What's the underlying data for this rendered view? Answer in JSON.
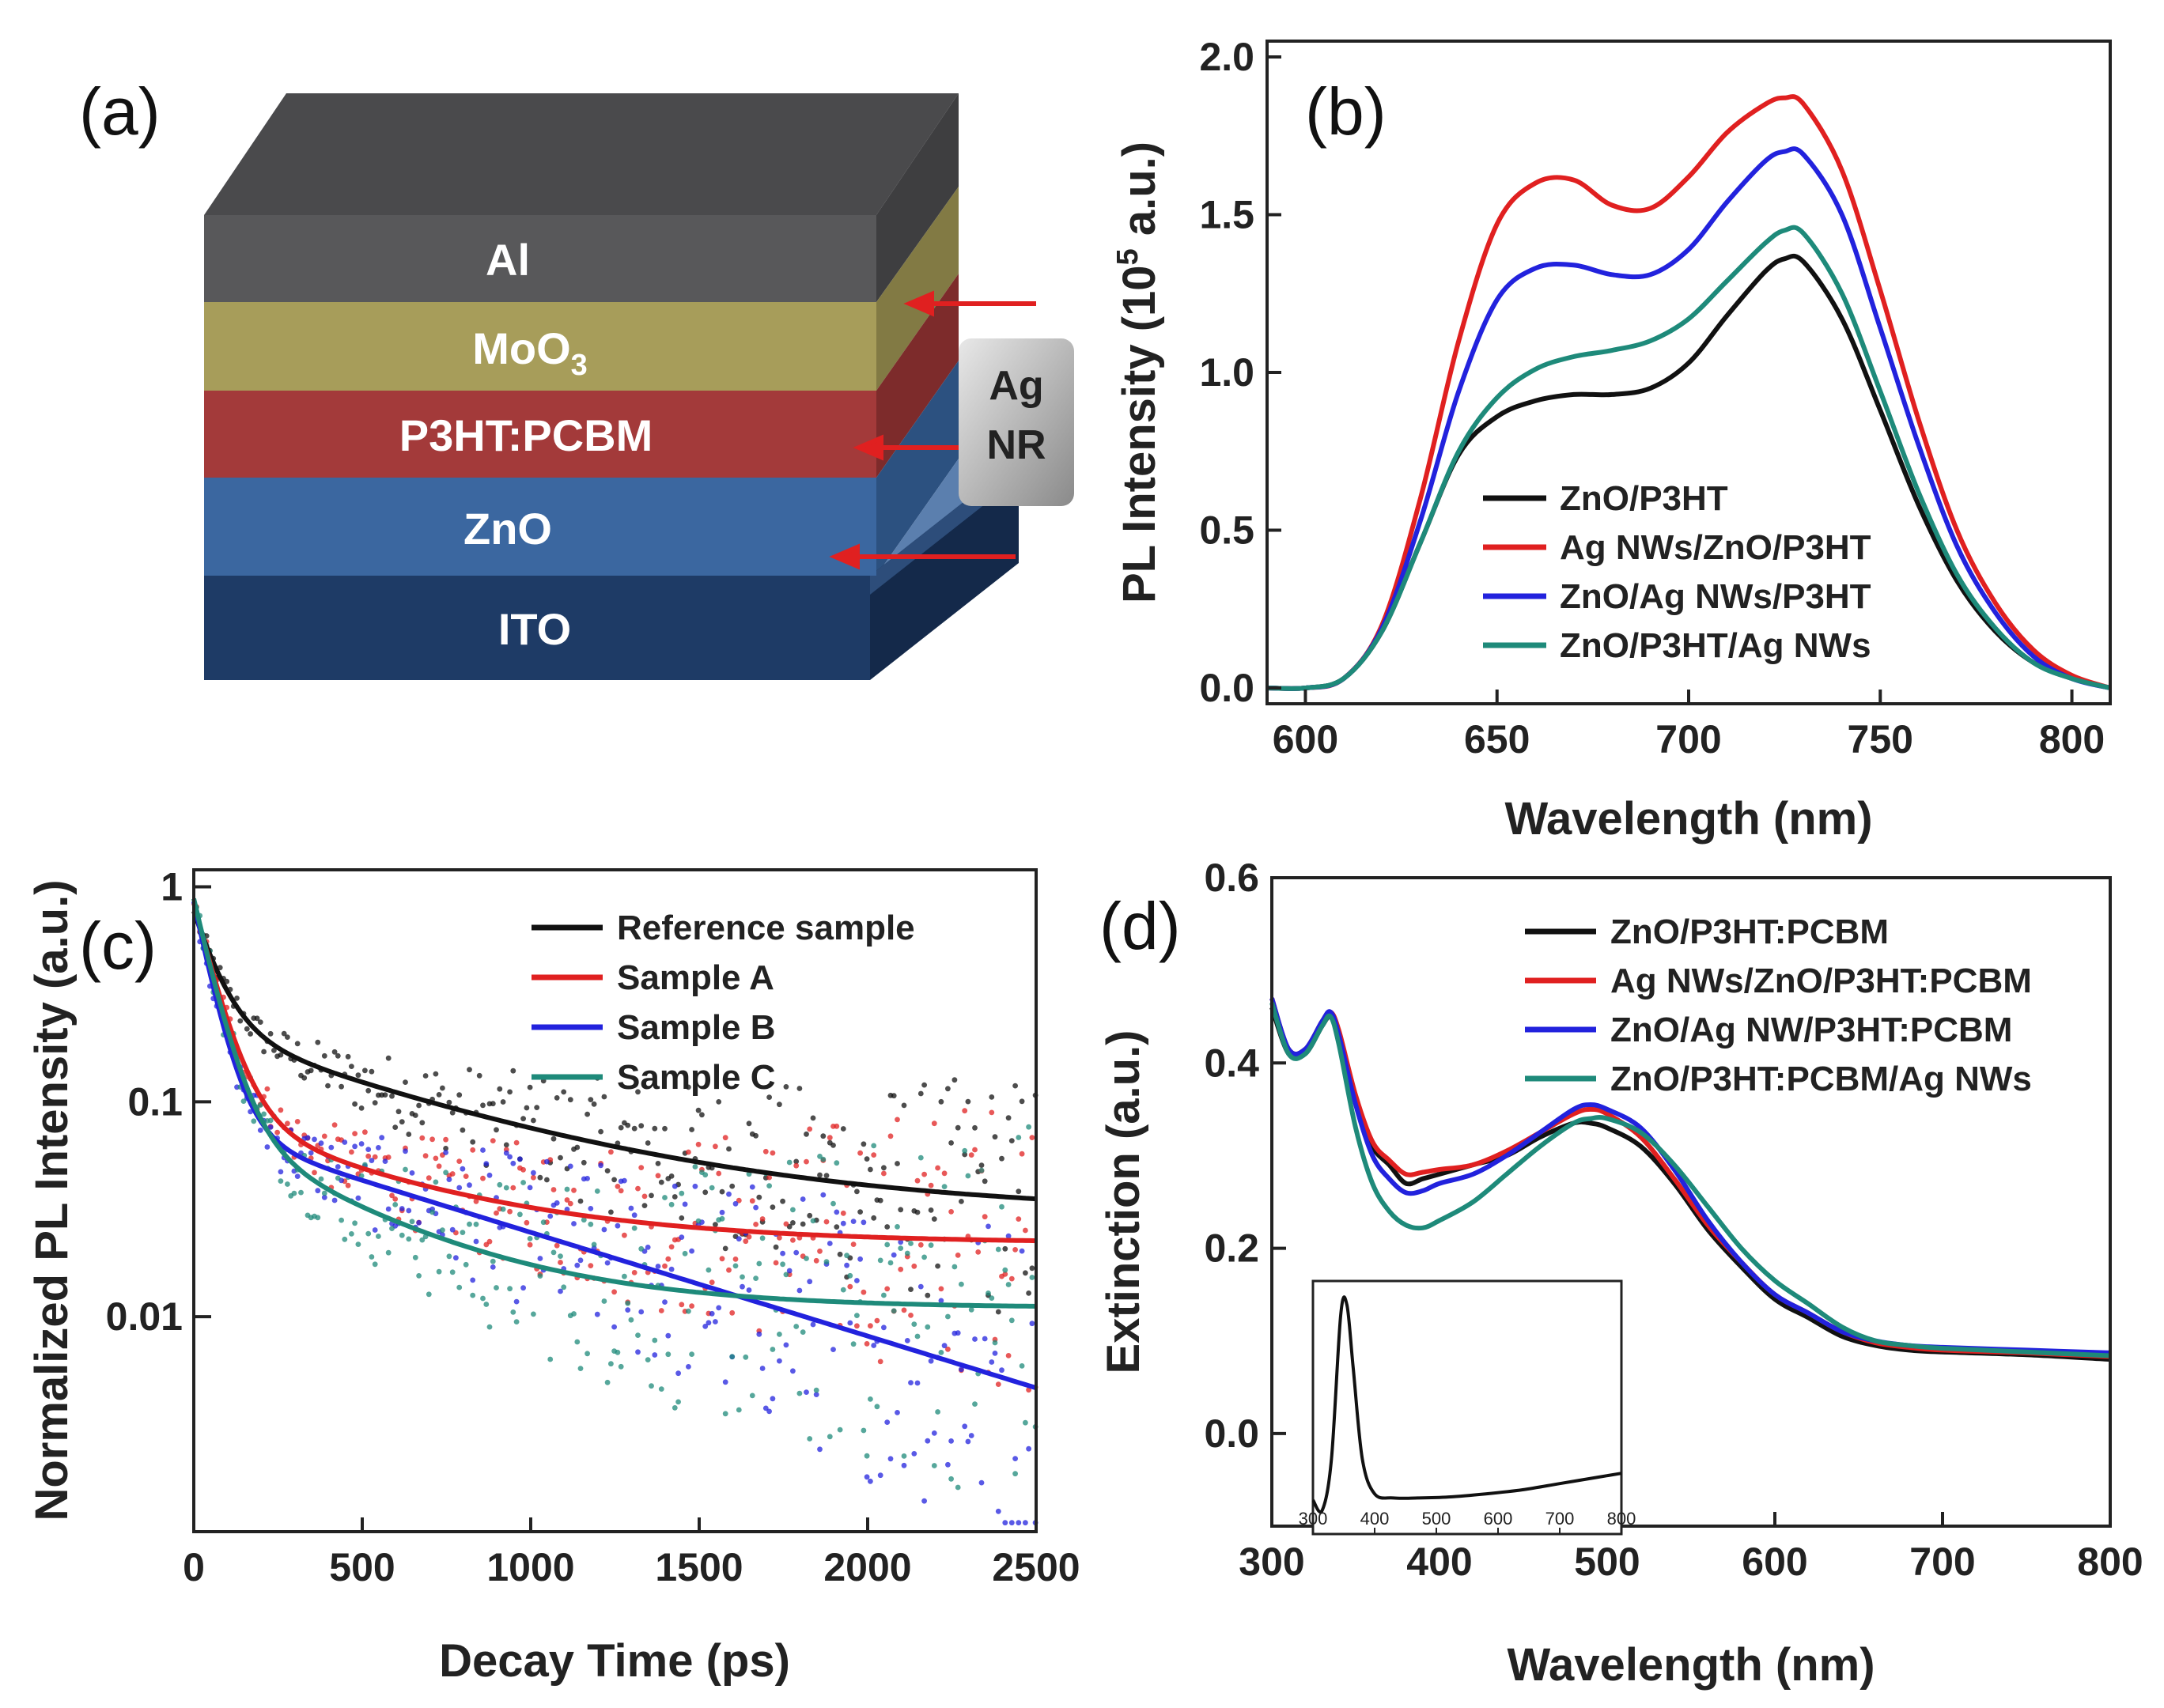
{
  "figure": {
    "panels": [
      "(a)",
      "(b)",
      "(c)",
      "(d)"
    ]
  },
  "chart_data": [
    {
      "id": "a",
      "type": "diagram",
      "title": "",
      "layers": [
        {
          "label": "Al",
          "color": "#58585a"
        },
        {
          "label": "MoO",
          "sub": "3",
          "color": "#a79d5a"
        },
        {
          "label": "P3HT:PCBM",
          "color": "#a33a3a"
        },
        {
          "label": "ZnO",
          "color": "#3b67a0"
        },
        {
          "label": "ITO",
          "color": "#1e3b66"
        }
      ],
      "annotation": {
        "line1": "Ag",
        "line2": "NR"
      },
      "arrow_color": "#e02020"
    },
    {
      "id": "b",
      "type": "line",
      "title": "",
      "xlabel": "Wavelength (nm)",
      "ylabel_prefix": "PL Intensity (10",
      "ylabel_sup": "5",
      "ylabel_suffix": " a.u.)",
      "xlim": [
        590,
        810
      ],
      "ylim": [
        -0.05,
        2.05
      ],
      "xticks": [
        600,
        650,
        700,
        750,
        800
      ],
      "yticks": [
        0.0,
        0.5,
        1.0,
        1.5,
        2.0
      ],
      "x": [
        590,
        600,
        610,
        620,
        630,
        640,
        650,
        660,
        670,
        680,
        690,
        700,
        710,
        720,
        725,
        730,
        740,
        750,
        760,
        770,
        780,
        790,
        800,
        810
      ],
      "series": [
        {
          "name": "ZnO/P3HT",
          "color": "#111111",
          "values": [
            0.0,
            0.0,
            0.03,
            0.18,
            0.46,
            0.74,
            0.86,
            0.91,
            0.93,
            0.93,
            0.95,
            1.03,
            1.18,
            1.32,
            1.36,
            1.35,
            1.17,
            0.88,
            0.58,
            0.34,
            0.18,
            0.08,
            0.03,
            0.0
          ]
        },
        {
          "name": "Ag NWs/ZnO/P3HT",
          "color": "#e02020",
          "values": [
            0.0,
            0.0,
            0.03,
            0.2,
            0.6,
            1.1,
            1.47,
            1.6,
            1.61,
            1.53,
            1.52,
            1.62,
            1.76,
            1.85,
            1.87,
            1.85,
            1.64,
            1.26,
            0.85,
            0.5,
            0.27,
            0.12,
            0.04,
            0.0
          ]
        },
        {
          "name": "ZnO/Ag NWs/P3HT",
          "color": "#2222dd",
          "values": [
            0.0,
            0.0,
            0.03,
            0.19,
            0.53,
            0.94,
            1.23,
            1.33,
            1.34,
            1.31,
            1.31,
            1.39,
            1.54,
            1.67,
            1.7,
            1.69,
            1.5,
            1.14,
            0.77,
            0.45,
            0.24,
            0.1,
            0.03,
            0.0
          ]
        },
        {
          "name": "ZnO/P3HT/Ag NWs",
          "color": "#1e8a7a",
          "values": [
            0.0,
            0.0,
            0.03,
            0.18,
            0.46,
            0.75,
            0.92,
            1.01,
            1.05,
            1.07,
            1.1,
            1.17,
            1.29,
            1.41,
            1.45,
            1.44,
            1.25,
            0.94,
            0.62,
            0.36,
            0.19,
            0.08,
            0.03,
            0.0
          ]
        }
      ]
    },
    {
      "id": "c",
      "type": "scatter",
      "title": "",
      "xlabel": "Decay Time (ps)",
      "ylabel": "Normalized PL Intensity (a.u.)",
      "yscale": "log",
      "xlim": [
        0,
        2500
      ],
      "ylim": [
        0.001,
        1.2
      ],
      "xticks": [
        0,
        500,
        1000,
        1500,
        2000,
        2500
      ],
      "yticks": [
        1,
        0.1,
        0.01
      ],
      "ytick_labels": [
        "1",
        "0.1",
        "0.01"
      ],
      "series": [
        {
          "name": "Reference sample",
          "color": "#111111",
          "fit": {
            "a1": 0.55,
            "t1": 70,
            "a2": 0.19,
            "t2": 700,
            "c": 0.03
          }
        },
        {
          "name": "Sample A",
          "color": "#e02020",
          "fit": {
            "a1": 0.75,
            "t1": 65,
            "a2": 0.07,
            "t2": 520,
            "c": 0.022
          }
        },
        {
          "name": "Sample B",
          "color": "#2222dd",
          "fit": {
            "a1": 0.78,
            "t1": 55,
            "a2": 0.075,
            "t2": 900,
            "c": 0.0
          }
        },
        {
          "name": "Sample C",
          "color": "#1e8a7a",
          "fit": {
            "a1": 0.8,
            "t1": 60,
            "a2": 0.07,
            "t2": 420,
            "c": 0.011
          }
        }
      ]
    },
    {
      "id": "d",
      "type": "line",
      "title": "",
      "xlabel": "Wavelength (nm)",
      "ylabel": "Extinction (a.u.)",
      "xlim": [
        300,
        800
      ],
      "ylim": [
        -0.1,
        0.6
      ],
      "xticks": [
        300,
        400,
        500,
        600,
        700,
        800
      ],
      "yticks": [
        0.0,
        0.2,
        0.4,
        0.6
      ],
      "x": [
        300,
        310,
        320,
        330,
        335,
        340,
        350,
        360,
        370,
        380,
        390,
        400,
        420,
        440,
        460,
        480,
        490,
        500,
        520,
        540,
        560,
        580,
        600,
        620,
        640,
        660,
        680,
        700,
        750,
        800
      ],
      "series": [
        {
          "name": "ZnO/P3HT:PCBM",
          "color": "#111111",
          "values": [
            0.46,
            0.41,
            0.41,
            0.44,
            0.45,
            0.43,
            0.36,
            0.31,
            0.29,
            0.27,
            0.275,
            0.28,
            0.29,
            0.3,
            0.32,
            0.335,
            0.335,
            0.33,
            0.31,
            0.27,
            0.22,
            0.18,
            0.145,
            0.125,
            0.105,
            0.095,
            0.09,
            0.088,
            0.085,
            0.08
          ]
        },
        {
          "name": "Ag NWs/ZnO/P3HT:PCBM",
          "color": "#e02020",
          "values": [
            0.47,
            0.415,
            0.415,
            0.445,
            0.455,
            0.435,
            0.365,
            0.315,
            0.295,
            0.28,
            0.282,
            0.285,
            0.29,
            0.305,
            0.325,
            0.345,
            0.35,
            0.345,
            0.32,
            0.275,
            0.225,
            0.185,
            0.15,
            0.13,
            0.11,
            0.098,
            0.093,
            0.09,
            0.087,
            0.083
          ]
        },
        {
          "name": "ZnO/Ag NW/P3HT:PCBM",
          "color": "#2222dd",
          "values": [
            0.47,
            0.415,
            0.415,
            0.445,
            0.455,
            0.43,
            0.355,
            0.3,
            0.275,
            0.26,
            0.262,
            0.27,
            0.28,
            0.3,
            0.325,
            0.35,
            0.355,
            0.35,
            0.33,
            0.285,
            0.23,
            0.185,
            0.15,
            0.13,
            0.11,
            0.1,
            0.095,
            0.093,
            0.09,
            0.087
          ]
        },
        {
          "name": "ZnO/P3HT:PCBM/Ag NWs",
          "color": "#1e8a7a",
          "values": [
            0.465,
            0.41,
            0.41,
            0.44,
            0.45,
            0.42,
            0.33,
            0.27,
            0.24,
            0.225,
            0.222,
            0.23,
            0.25,
            0.28,
            0.31,
            0.335,
            0.34,
            0.34,
            0.325,
            0.29,
            0.245,
            0.2,
            0.165,
            0.14,
            0.115,
            0.1,
            0.095,
            0.092,
            0.088,
            0.084
          ]
        }
      ],
      "inset": {
        "xlim": [
          300,
          800
        ],
        "xticks": [
          300,
          400,
          500,
          600,
          700,
          800
        ],
        "x": [
          300,
          315,
          330,
          345,
          355,
          365,
          380,
          400,
          430,
          470,
          520,
          580,
          640,
          700,
          760,
          800
        ],
        "values": [
          0.05,
          0.0,
          0.25,
          0.95,
          1.0,
          0.7,
          0.25,
          0.08,
          0.06,
          0.06,
          0.065,
          0.08,
          0.1,
          0.13,
          0.16,
          0.18
        ]
      }
    }
  ]
}
